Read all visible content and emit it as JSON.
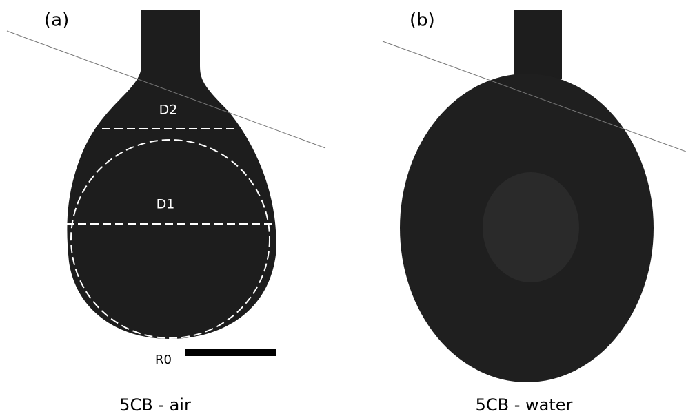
{
  "panels": [
    {
      "label": "(a)",
      "annotations": [
        "D2",
        "D1",
        "R0"
      ],
      "caption": "5CB - air"
    },
    {
      "label": "(b)",
      "caption": "5CB - water"
    }
  ]
}
